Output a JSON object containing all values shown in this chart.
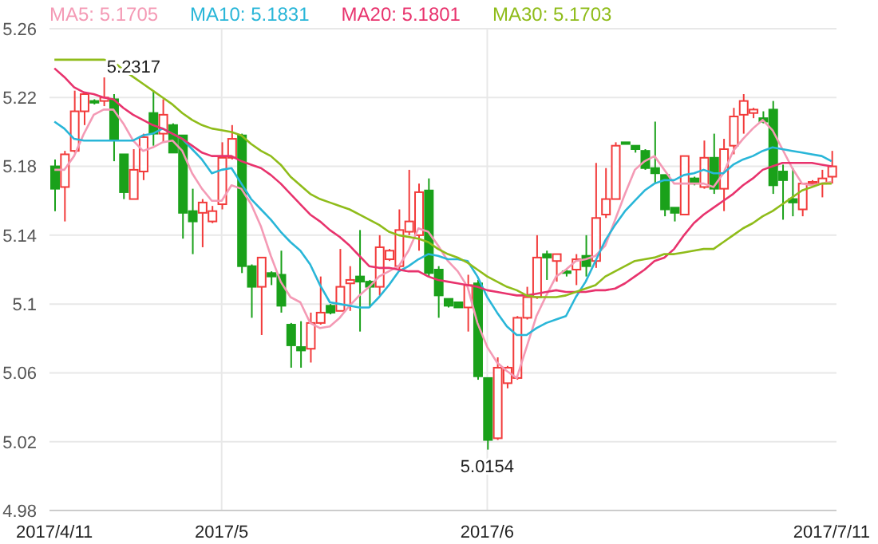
{
  "chart_data": {
    "type": "candlestick",
    "categories": [
      "2017/4/11",
      null,
      null,
      null,
      null,
      null,
      null,
      null,
      null,
      null,
      null,
      null,
      null,
      null,
      null,
      null,
      null,
      "2017/5",
      null,
      null,
      null,
      null,
      null,
      null,
      null,
      null,
      null,
      null,
      null,
      null,
      null,
      null,
      null,
      null,
      null,
      null,
      null,
      null,
      null,
      null,
      null,
      null,
      null,
      null,
      "2017/6",
      null,
      null,
      null,
      null,
      null,
      null,
      null,
      null,
      null,
      null,
      null,
      null,
      null,
      null,
      null,
      null,
      null,
      null,
      null,
      null,
      null,
      null,
      null,
      null,
      null,
      null,
      null,
      null,
      null,
      null,
      null,
      null,
      null,
      null,
      "2017/7/11"
    ],
    "ohlc": [
      [
        5.18,
        5.184,
        5.154,
        5.167
      ],
      [
        5.168,
        5.189,
        5.148,
        5.187
      ],
      [
        5.189,
        5.224,
        5.188,
        5.212
      ],
      [
        5.212,
        5.223,
        5.204,
        5.222
      ],
      [
        5.218,
        5.219,
        5.216,
        5.217
      ],
      [
        5.218,
        5.2317,
        5.215,
        5.22
      ],
      [
        5.219,
        5.222,
        5.183,
        5.196
      ],
      [
        5.187,
        5.187,
        5.161,
        5.165
      ],
      [
        5.161,
        5.19,
        5.161,
        5.178
      ],
      [
        5.177,
        5.199,
        5.172,
        5.197
      ],
      [
        5.211,
        5.224,
        5.192,
        5.199
      ],
      [
        5.199,
        5.219,
        5.194,
        5.21
      ],
      [
        5.204,
        5.205,
        5.188,
        5.188
      ],
      [
        5.198,
        5.198,
        5.138,
        5.153
      ],
      [
        5.154,
        5.167,
        5.129,
        5.148
      ],
      [
        5.153,
        5.161,
        5.133,
        5.159
      ],
      [
        5.148,
        5.157,
        5.147,
        5.154
      ],
      [
        5.158,
        5.194,
        5.155,
        5.185
      ],
      [
        5.185,
        5.204,
        5.184,
        5.196
      ],
      [
        5.198,
        5.199,
        5.118,
        5.122
      ],
      [
        5.122,
        5.123,
        5.092,
        5.11
      ],
      [
        5.11,
        5.127,
        5.082,
        5.127
      ],
      [
        5.118,
        5.119,
        5.111,
        5.116
      ],
      [
        5.117,
        5.131,
        5.095,
        5.099
      ],
      [
        5.088,
        5.089,
        5.063,
        5.076
      ],
      [
        5.075,
        5.09,
        5.063,
        5.073
      ],
      [
        5.074,
        5.095,
        5.066,
        5.089
      ],
      [
        5.089,
        5.116,
        5.088,
        5.095
      ],
      [
        5.099,
        5.1,
        5.094,
        5.095
      ],
      [
        5.096,
        5.132,
        5.096,
        5.11
      ],
      [
        5.112,
        5.122,
        5.096,
        5.114
      ],
      [
        5.116,
        5.143,
        5.084,
        5.113
      ],
      [
        5.113,
        5.114,
        5.098,
        5.11
      ],
      [
        5.11,
        5.14,
        5.105,
        5.133
      ],
      [
        5.126,
        5.132,
        5.125,
        5.131
      ],
      [
        5.122,
        5.155,
        5.119,
        5.143
      ],
      [
        5.142,
        5.178,
        5.14,
        5.148
      ],
      [
        5.14,
        5.17,
        5.131,
        5.165
      ],
      [
        5.166,
        5.173,
        5.116,
        5.118
      ],
      [
        5.12,
        5.122,
        5.092,
        5.105
      ],
      [
        5.103,
        5.103,
        5.098,
        5.099
      ],
      [
        5.101,
        5.101,
        5.098,
        5.098
      ],
      [
        5.098,
        5.117,
        5.084,
        5.111
      ],
      [
        5.112,
        5.114,
        5.056,
        5.058
      ],
      [
        5.057,
        5.057,
        5.0154,
        5.021
      ],
      [
        5.022,
        5.069,
        5.021,
        5.063
      ],
      [
        5.054,
        5.064,
        5.051,
        5.063
      ],
      [
        5.057,
        5.093,
        5.056,
        5.092
      ],
      [
        5.092,
        5.11,
        5.091,
        5.104
      ],
      [
        5.104,
        5.14,
        5.103,
        5.127
      ],
      [
        5.129,
        5.131,
        5.114,
        5.127
      ],
      [
        5.125,
        5.129,
        5.113,
        5.129
      ],
      [
        5.119,
        5.12,
        5.116,
        5.118
      ],
      [
        5.12,
        5.129,
        5.111,
        5.126
      ],
      [
        5.128,
        5.14,
        5.116,
        5.122
      ],
      [
        5.125,
        5.182,
        5.121,
        5.15
      ],
      [
        5.152,
        5.179,
        5.15,
        5.161
      ],
      [
        5.161,
        5.194,
        5.161,
        5.192
      ],
      [
        5.194,
        5.194,
        5.193,
        5.193
      ],
      [
        5.192,
        5.192,
        5.188,
        5.19
      ],
      [
        5.189,
        5.19,
        5.178,
        5.179
      ],
      [
        5.179,
        5.206,
        5.17,
        5.176
      ],
      [
        5.175,
        5.175,
        5.151,
        5.155
      ],
      [
        5.156,
        5.156,
        5.148,
        5.153
      ],
      [
        5.152,
        5.186,
        5.152,
        5.186
      ],
      [
        5.173,
        5.174,
        5.169,
        5.17
      ],
      [
        5.168,
        5.195,
        5.167,
        5.185
      ],
      [
        5.185,
        5.199,
        5.164,
        5.167
      ],
      [
        5.167,
        5.196,
        5.154,
        5.19
      ],
      [
        5.192,
        5.214,
        5.187,
        5.209
      ],
      [
        5.21,
        5.222,
        5.199,
        5.218
      ],
      [
        5.211,
        5.214,
        5.208,
        5.213
      ],
      [
        5.208,
        5.212,
        5.205,
        5.206
      ],
      [
        5.213,
        5.218,
        5.164,
        5.169
      ],
      [
        5.177,
        5.181,
        5.149,
        5.172
      ],
      [
        5.161,
        5.179,
        5.151,
        5.159
      ],
      [
        5.155,
        5.17,
        5.151,
        5.17
      ],
      [
        5.17,
        5.172,
        5.169,
        5.171
      ],
      [
        5.17,
        5.178,
        5.162,
        5.173
      ],
      [
        5.174,
        5.189,
        5.17,
        5.18
      ]
    ],
    "colors": [
      "#1aa11a",
      "#f23b3b",
      "#f23b3b",
      "#f23b3b",
      "#1aa11a",
      "#f23b3b",
      "#1aa11a",
      "#1aa11a",
      "#f23b3b",
      "#f23b3b",
      "#1aa11a",
      "#f23b3b",
      "#1aa11a",
      "#1aa11a",
      "#1aa11a",
      "#f23b3b",
      "#f23b3b",
      "#f23b3b",
      "#f23b3b",
      "#1aa11a",
      "#1aa11a",
      "#f23b3b",
      "#1aa11a",
      "#1aa11a",
      "#1aa11a",
      "#1aa11a",
      "#f23b3b",
      "#f23b3b",
      "#1aa11a",
      "#f23b3b",
      "#f23b3b",
      "#1aa11a",
      "#1aa11a",
      "#f23b3b",
      "#f23b3b",
      "#f23b3b",
      "#f23b3b",
      "#f23b3b",
      "#1aa11a",
      "#1aa11a",
      "#1aa11a",
      "#1aa11a",
      "#f23b3b",
      "#1aa11a",
      "#1aa11a",
      "#f23b3b",
      "#f23b3b",
      "#f23b3b",
      "#f23b3b",
      "#f23b3b",
      "#1aa11a",
      "#f23b3b",
      "#1aa11a",
      "#f23b3b",
      "#1aa11a",
      "#f23b3b",
      "#f23b3b",
      "#f23b3b",
      "#1aa11a",
      "#1aa11a",
      "#1aa11a",
      "#1aa11a",
      "#1aa11a",
      "#1aa11a",
      "#f23b3b",
      "#1aa11a",
      "#f23b3b",
      "#1aa11a",
      "#f23b3b",
      "#f23b3b",
      "#f23b3b",
      "#f23b3b",
      "#1aa11a",
      "#1aa11a",
      "#1aa11a",
      "#1aa11a",
      "#f23b3b",
      "#f23b3b",
      "#f23b3b",
      "#f23b3b"
    ],
    "series": [
      {
        "name": "MA5: 5.1705",
        "type": "line",
        "color": "#f49ab5",
        "values": [
          5.178,
          5.178,
          5.186,
          5.199,
          5.21,
          5.213,
          5.213,
          5.205,
          5.195,
          5.189,
          5.191,
          5.194,
          5.195,
          5.189,
          5.176,
          5.167,
          5.16,
          5.16,
          5.169,
          5.167,
          5.158,
          5.145,
          5.128,
          5.113,
          5.104,
          5.101,
          5.089,
          5.086,
          5.087,
          5.092,
          5.099,
          5.105,
          5.11,
          5.116,
          5.119,
          5.122,
          5.131,
          5.144,
          5.142,
          5.134,
          5.125,
          5.119,
          5.11,
          5.089,
          5.075,
          5.066,
          5.061,
          5.057,
          5.075,
          5.093,
          5.105,
          5.116,
          5.12,
          5.125,
          5.126,
          5.128,
          5.134,
          5.149,
          5.164,
          5.178,
          5.183,
          5.186,
          5.178,
          5.17,
          5.17,
          5.17,
          5.17,
          5.168,
          5.176,
          5.189,
          5.196,
          5.202,
          5.207,
          5.201,
          5.19,
          5.179,
          5.17,
          5.169,
          5.17,
          5.171
        ]
      },
      {
        "name": "MA10: 5.1831",
        "type": "line",
        "color": "#29b6d8",
        "values": [
          5.206,
          5.202,
          5.196,
          5.195,
          5.195,
          5.195,
          5.195,
          5.195,
          5.195,
          5.198,
          5.199,
          5.202,
          5.199,
          5.196,
          5.19,
          5.184,
          5.176,
          5.178,
          5.179,
          5.17,
          5.161,
          5.155,
          5.149,
          5.142,
          5.136,
          5.131,
          5.123,
          5.111,
          5.101,
          5.1,
          5.099,
          5.098,
          5.098,
          5.104,
          5.111,
          5.119,
          5.122,
          5.126,
          5.129,
          5.128,
          5.126,
          5.126,
          5.125,
          5.116,
          5.104,
          5.095,
          5.087,
          5.082,
          5.082,
          5.086,
          5.089,
          5.091,
          5.093,
          5.104,
          5.113,
          5.125,
          5.137,
          5.146,
          5.154,
          5.16,
          5.166,
          5.17,
          5.172,
          5.172,
          5.175,
          5.176,
          5.178,
          5.176,
          5.176,
          5.181,
          5.184,
          5.186,
          5.189,
          5.191,
          5.19,
          5.189,
          5.188,
          5.187,
          5.186,
          5.183
        ]
      },
      {
        "name": "MA20: 5.1801",
        "type": "line",
        "color": "#e8336d",
        "values": [
          5.237,
          5.232,
          5.226,
          5.223,
          5.222,
          5.22,
          5.219,
          5.214,
          5.21,
          5.207,
          5.204,
          5.202,
          5.199,
          5.196,
          5.192,
          5.188,
          5.186,
          5.186,
          5.186,
          5.183,
          5.181,
          5.179,
          5.175,
          5.17,
          5.164,
          5.158,
          5.152,
          5.148,
          5.143,
          5.139,
          5.134,
          5.128,
          5.122,
          5.121,
          5.121,
          5.12,
          5.119,
          5.119,
          5.116,
          5.114,
          5.113,
          5.112,
          5.111,
          5.11,
          5.108,
          5.107,
          5.106,
          5.105,
          5.105,
          5.106,
          5.107,
          5.108,
          5.107,
          5.107,
          5.107,
          5.108,
          5.108,
          5.109,
          5.112,
          5.116,
          5.12,
          5.125,
          5.127,
          5.132,
          5.14,
          5.147,
          5.152,
          5.156,
          5.16,
          5.164,
          5.169,
          5.173,
          5.178,
          5.18,
          5.182,
          5.182,
          5.182,
          5.182,
          5.181,
          5.18
        ]
      },
      {
        "name": "MA30: 5.1703",
        "type": "line",
        "color": "#8fbc1a",
        "values": [
          5.242,
          5.242,
          5.242,
          5.242,
          5.242,
          5.242,
          5.241,
          5.236,
          5.232,
          5.228,
          5.224,
          5.22,
          5.216,
          5.211,
          5.207,
          5.204,
          5.202,
          5.201,
          5.2,
          5.198,
          5.193,
          5.189,
          5.186,
          5.181,
          5.174,
          5.169,
          5.164,
          5.161,
          5.159,
          5.157,
          5.155,
          5.152,
          5.149,
          5.146,
          5.142,
          5.14,
          5.139,
          5.138,
          5.136,
          5.132,
          5.129,
          5.127,
          5.124,
          5.12,
          5.116,
          5.113,
          5.11,
          5.108,
          5.105,
          5.104,
          5.104,
          5.104,
          5.105,
          5.107,
          5.109,
          5.111,
          5.116,
          5.119,
          5.122,
          5.125,
          5.126,
          5.127,
          5.129,
          5.129,
          5.13,
          5.131,
          5.132,
          5.132,
          5.136,
          5.14,
          5.144,
          5.147,
          5.151,
          5.154,
          5.158,
          5.162,
          5.166,
          5.168,
          5.17,
          5.17
        ]
      }
    ],
    "ylim": [
      4.98,
      5.26
    ],
    "yticks": [
      4.98,
      5.02,
      5.06,
      5.1,
      5.14,
      5.18,
      5.22,
      5.26
    ],
    "grid": true,
    "legend": "top left",
    "annotations": [
      {
        "text": "5.2317",
        "y": 5.2317
      },
      {
        "text": "5.0154",
        "y": 5.0154
      }
    ]
  }
}
